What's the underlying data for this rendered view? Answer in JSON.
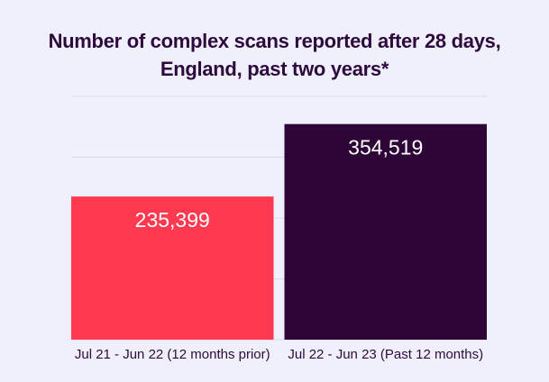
{
  "chart_data": {
    "type": "bar",
    "title": [
      "Number of complex scans reported after 28 days,",
      "England, past two years*"
    ],
    "categories": [
      "Jul 21 - Jun 22 (12 months prior)",
      "Jul 22 - Jun 23 (Past 12 months)"
    ],
    "values": [
      235399,
      354519
    ],
    "value_labels": [
      "235,399",
      "354,519"
    ],
    "colors": [
      "#ff3a50",
      "#2e0537"
    ],
    "xlabel": "",
    "ylabel": "",
    "ylim": [
      0,
      400000
    ],
    "grid": true,
    "gridline_values": [
      100000,
      200000,
      300000,
      400000
    ],
    "background": "#f0effc",
    "text_color": "#2d0a3c"
  }
}
